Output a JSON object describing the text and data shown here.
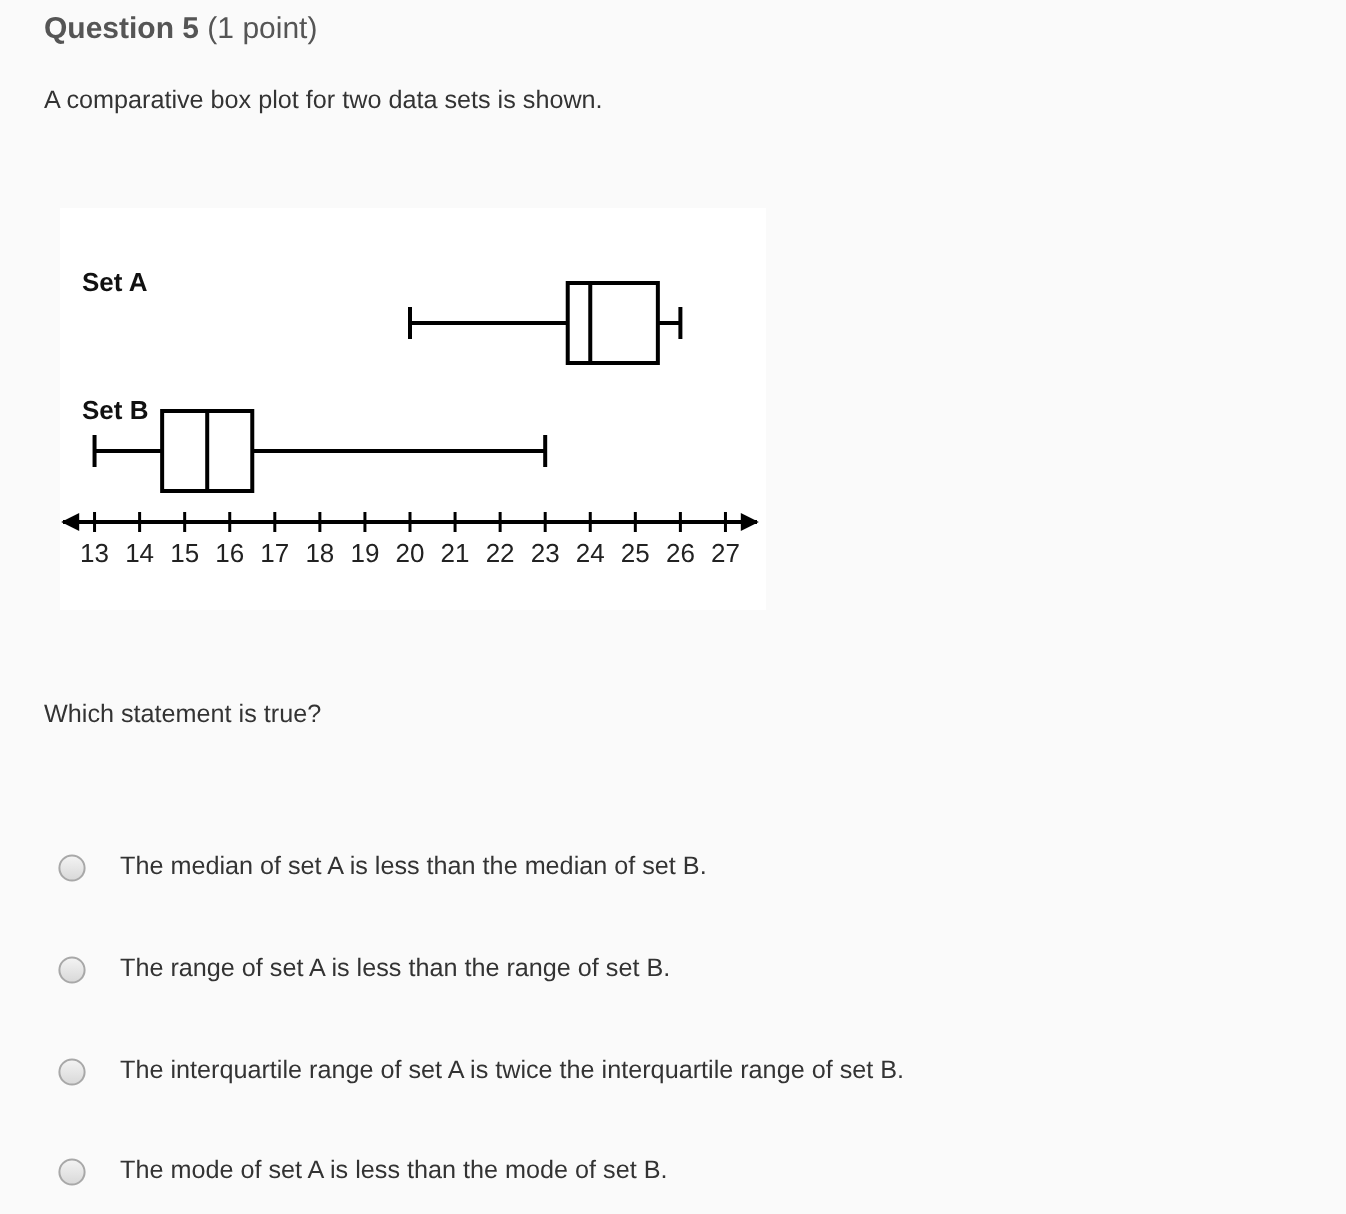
{
  "chart_data": {
    "type": "box",
    "title": "Question 5",
    "subtitle": "(1 point)",
    "categories": [
      "Set A",
      "Set B"
    ],
    "orientation": "horizontal",
    "color": "#000000",
    "boxes": [
      {
        "low": 20,
        "q1": 23.5,
        "median": 24,
        "q3": 25.5,
        "high": 26
      },
      {
        "low": 13,
        "q1": 14.5,
        "median": 15.5,
        "q3": 16.5,
        "high": 23
      }
    ],
    "xlim": [
      12.3,
      27.7
    ],
    "xticks": [
      13,
      14,
      15,
      16,
      17,
      18,
      19,
      20,
      21,
      22,
      23,
      24,
      25,
      26,
      27
    ],
    "annotations": [
      "A comparative box plot for two data sets is shown.",
      "Which statement is true?",
      "The median of set A is less than the median of set B.",
      "The range of set A is less than the range of set B.",
      "The interquartile range of set A is twice the interquartile range of set B.",
      "The mode of set A is less than the mode of set B."
    ]
  }
}
